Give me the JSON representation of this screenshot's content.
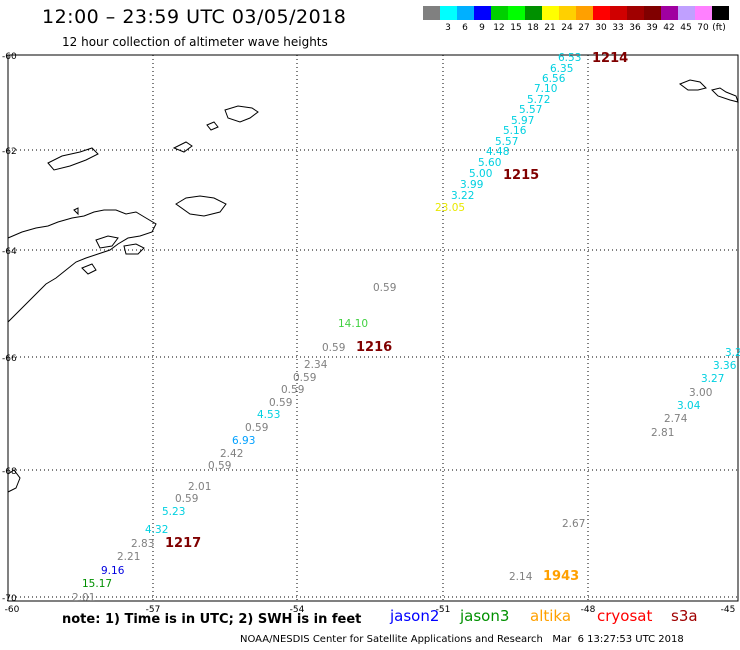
{
  "header": {
    "title": "12:00 – 23:59 UTC 03/05/2018",
    "subtitle": "12 hour collection of altimeter wave heights"
  },
  "scale": {
    "unit": "(ft)",
    "bins": [
      {
        "color": "#808080",
        "label": ""
      },
      {
        "color": "#00ffff",
        "label": "3"
      },
      {
        "color": "#00b0ff",
        "label": "6"
      },
      {
        "color": "#0000ff",
        "label": "9"
      },
      {
        "color": "#00d000",
        "label": "12"
      },
      {
        "color": "#00ff00",
        "label": "15"
      },
      {
        "color": "#009000",
        "label": "18"
      },
      {
        "color": "#ffff00",
        "label": "21"
      },
      {
        "color": "#ffd000",
        "label": "24"
      },
      {
        "color": "#ffa000",
        "label": "27"
      },
      {
        "color": "#ff0000",
        "label": "30"
      },
      {
        "color": "#d00000",
        "label": "33"
      },
      {
        "color": "#a00000",
        "label": "36"
      },
      {
        "color": "#800000",
        "label": "39"
      },
      {
        "color": "#a000a0",
        "label": "42"
      },
      {
        "color": "#c0a0ff",
        "label": "45"
      },
      {
        "color": "#ff80ff",
        "label": "70"
      },
      {
        "color": "#000000",
        "label": ""
      }
    ]
  },
  "axes": {
    "lat_labels": [
      "-60",
      "-62",
      "-64",
      "-66",
      "-68",
      "-70"
    ],
    "lon_labels": [
      "-60",
      "-57",
      "-54",
      "-51",
      "-48",
      "-45"
    ]
  },
  "track_labels": [
    {
      "text": "1214",
      "color": "#800000"
    },
    {
      "text": "1215",
      "color": "#800000"
    },
    {
      "text": "1216",
      "color": "#800000"
    },
    {
      "text": "1217",
      "color": "#800000"
    },
    {
      "text": "1943",
      "color": "#ffa000"
    }
  ],
  "wave_heights": [
    {
      "v": "6.53",
      "c": "#00d0e0"
    },
    {
      "v": "6.35",
      "c": "#00d0e0"
    },
    {
      "v": "6.56",
      "c": "#00d0e0"
    },
    {
      "v": "7.10",
      "c": "#00d0e0"
    },
    {
      "v": "5.72",
      "c": "#00d0e0"
    },
    {
      "v": "5.57",
      "c": "#00d0e0"
    },
    {
      "v": "5.97",
      "c": "#00d0e0"
    },
    {
      "v": "5.16",
      "c": "#00d0e0"
    },
    {
      "v": "5.57",
      "c": "#00d0e0"
    },
    {
      "v": "4.48",
      "c": "#00d0e0"
    },
    {
      "v": "5.60",
      "c": "#00d0e0"
    },
    {
      "v": "5.00",
      "c": "#00d0e0"
    },
    {
      "v": "3.99",
      "c": "#00d0e0"
    },
    {
      "v": "3.22",
      "c": "#00d0e0"
    },
    {
      "v": "23.05",
      "c": "#e8e800"
    },
    {
      "v": "0.59",
      "c": "#808080"
    },
    {
      "v": "14.10",
      "c": "#40d040"
    },
    {
      "v": "0.59",
      "c": "#808080"
    },
    {
      "v": "2.34",
      "c": "#808080"
    },
    {
      "v": "0.59",
      "c": "#808080"
    },
    {
      "v": "0.59",
      "c": "#808080"
    },
    {
      "v": "0.59",
      "c": "#808080"
    },
    {
      "v": "4.53",
      "c": "#00d0e0"
    },
    {
      "v": "0.59",
      "c": "#808080"
    },
    {
      "v": "6.93",
      "c": "#00a0ff"
    },
    {
      "v": "2.42",
      "c": "#808080"
    },
    {
      "v": "0.59",
      "c": "#808080"
    },
    {
      "v": "2.01",
      "c": "#808080"
    },
    {
      "v": "0.59",
      "c": "#808080"
    },
    {
      "v": "5.23",
      "c": "#00d0e0"
    },
    {
      "v": "4.32",
      "c": "#00d0e0"
    },
    {
      "v": "2.83",
      "c": "#808080"
    },
    {
      "v": "2.21",
      "c": "#808080"
    },
    {
      "v": "9.16",
      "c": "#0000e0"
    },
    {
      "v": "15.17",
      "c": "#009000"
    },
    {
      "v": "2.01",
      "c": "#808080"
    },
    {
      "v": "2.67",
      "c": "#808080"
    },
    {
      "v": "2.14",
      "c": "#808080"
    },
    {
      "v": "3.2",
      "c": "#00d0e0"
    },
    {
      "v": "3.36",
      "c": "#00d0e0"
    },
    {
      "v": "3.27",
      "c": "#00d0e0"
    },
    {
      "v": "3.00",
      "c": "#808080"
    },
    {
      "v": "3.04",
      "c": "#00d0e0"
    },
    {
      "v": "2.74",
      "c": "#808080"
    },
    {
      "v": "2.81",
      "c": "#808080"
    }
  ],
  "note": "note: 1) Time is in UTC; 2) SWH is in feet",
  "legend": [
    {
      "name": "jason2",
      "color": "#0000ff"
    },
    {
      "name": "jason3",
      "color": "#009000"
    },
    {
      "name": "altika",
      "color": "#ffa000"
    },
    {
      "name": "cryosat",
      "color": "#ff0000"
    },
    {
      "name": "s3a",
      "color": "#a00000"
    }
  ],
  "footer": "NOAA/NESDIS Center for Satellite Applications and Research   Mar  6 13:27:53 UTC 2018"
}
